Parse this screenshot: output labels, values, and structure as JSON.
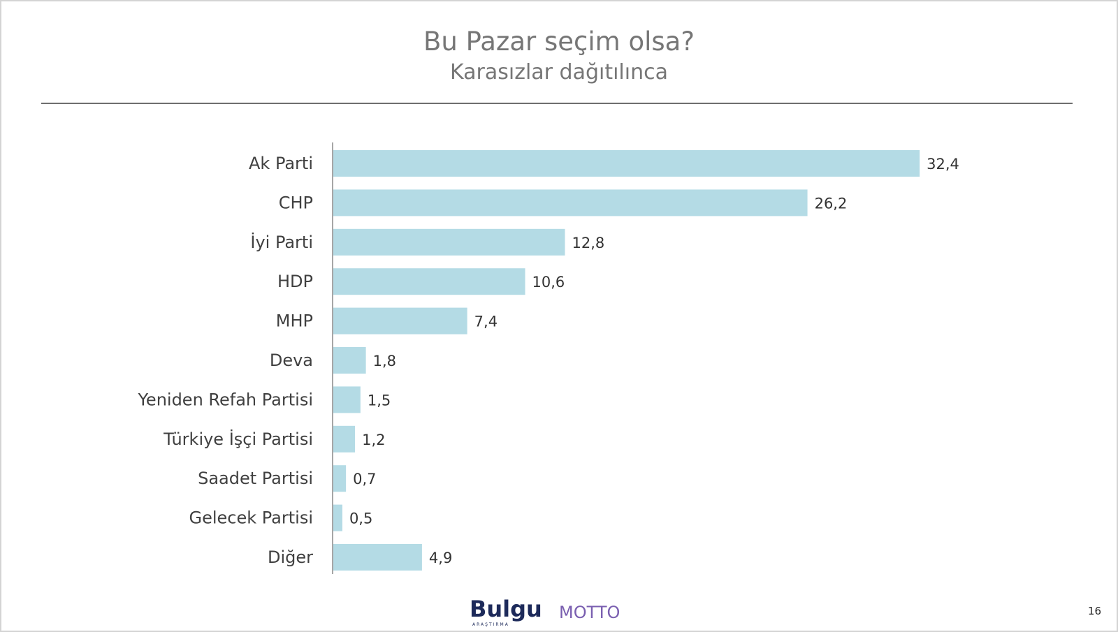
{
  "chart_data": {
    "type": "bar",
    "orientation": "horizontal",
    "title": "Bu Pazar seçim olsa?",
    "subtitle": "Karasızlar dağıtılınca",
    "categories": [
      "Ak Parti",
      "CHP",
      "İyi Parti",
      "HDP",
      "MHP",
      "Deva",
      "Yeniden Refah Partisi",
      "Türkiye İşçi Partisi",
      "Saadet Partisi",
      "Gelecek Partisi",
      "Diğer"
    ],
    "values": [
      32.4,
      26.2,
      12.8,
      10.6,
      7.4,
      1.8,
      1.5,
      1.2,
      0.7,
      0.5,
      4.9
    ],
    "data_labels": [
      "32,4",
      "26,2",
      "12,8",
      "10,6",
      "7,4",
      "1,8",
      "1,5",
      "1,2",
      "0,7",
      "0,5",
      "4,9"
    ],
    "bar_color": "#b4dbe5",
    "grid": false,
    "legend": "none"
  },
  "footer": {
    "logo_left": "Bulgu",
    "logo_left_sub": "ARAŞTIRMA",
    "logo_right": "MOTTO",
    "page_number": "16"
  }
}
